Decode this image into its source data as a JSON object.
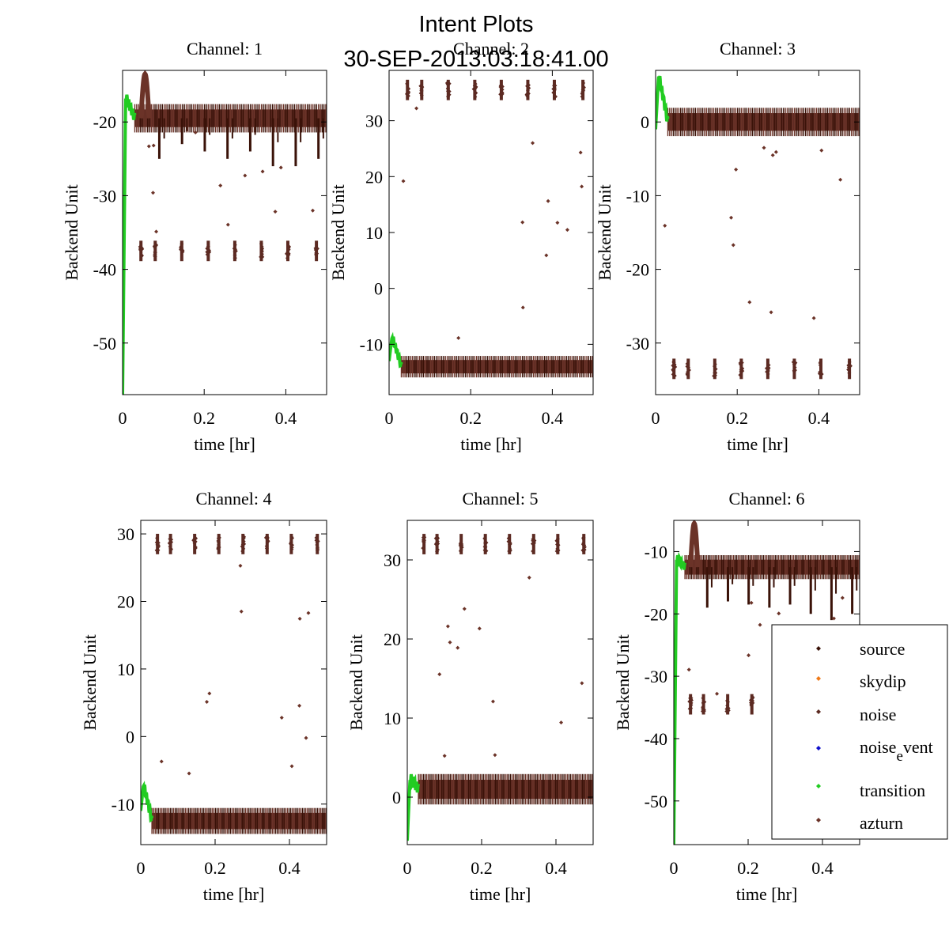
{
  "figure": {
    "title_line1": "Intent Plots",
    "title_line2": "30-SEP-2013:03:18:41.00"
  },
  "colors": {
    "source": "#3a1208",
    "skydip": "#f07a18",
    "noise": "#5c2a22",
    "noise_event": "#1010cc",
    "transition": "#22cc22",
    "azturn": "#6b3328"
  },
  "chart_data": [
    {
      "type": "scatter",
      "title": "Channel: 1",
      "xlabel": "time [hr]",
      "ylabel": "Backend Unit",
      "xlim": [
        0,
        0.5
      ],
      "ylim": [
        -57,
        -13
      ],
      "xticks": [
        0,
        0.2,
        0.4
      ],
      "xtick_labels": [
        "0",
        "0.2",
        "0.4"
      ],
      "yticks": [
        -20,
        -30,
        -40,
        -50
      ],
      "ytick_labels": [
        "-20",
        "-30",
        "-40",
        "-50"
      ],
      "baseline": -19.5,
      "band": 1.2,
      "dips": [
        -25,
        -23,
        -24,
        -25,
        -24,
        -26,
        -26,
        -25
      ],
      "cal_level": -37.5,
      "cal_times": [
        0.045,
        0.08,
        0.145,
        0.21,
        0.275,
        0.34,
        0.405,
        0.475
      ],
      "transition_from": -57,
      "transition_peak": -16.5,
      "bump_peak": -13.5
    },
    {
      "type": "scatter",
      "title": "Channel: 2",
      "xlabel": "time [hr]",
      "ylabel": "Backend Unit",
      "xlim": [
        0,
        0.5
      ],
      "ylim": [
        -19,
        39
      ],
      "xticks": [
        0,
        0.2,
        0.4
      ],
      "xtick_labels": [
        "0",
        "0.2",
        "0.4"
      ],
      "yticks": [
        30,
        20,
        10,
        0,
        -10
      ],
      "ytick_labels": [
        "30",
        "20",
        "10",
        "0",
        "-10"
      ],
      "baseline": -14,
      "band": 1.2,
      "cal_level": 35.5,
      "cal_times": [
        0.045,
        0.08,
        0.145,
        0.21,
        0.275,
        0.34,
        0.405,
        0.475
      ],
      "transition_from": -13,
      "transition_peak": -8.5
    },
    {
      "type": "scatter",
      "title": "Channel: 3",
      "xlabel": "time [hr]",
      "ylabel": "Backend Unit",
      "xlim": [
        0,
        0.5
      ],
      "ylim": [
        -37,
        7
      ],
      "xticks": [
        0,
        0.2,
        0.4
      ],
      "xtick_labels": [
        "0",
        "0.2",
        "0.4"
      ],
      "yticks": [
        0,
        -10,
        -20,
        -30
      ],
      "ytick_labels": [
        "0",
        "-10",
        "-20",
        "-30"
      ],
      "baseline": 0,
      "band": 1.2,
      "cal_level": -33.5,
      "cal_times": [
        0.045,
        0.08,
        0.145,
        0.21,
        0.275,
        0.34,
        0.405,
        0.475
      ],
      "transition_from": -1,
      "transition_peak": 6.5
    },
    {
      "type": "scatter",
      "title": "Channel: 4",
      "xlabel": "time [hr]",
      "ylabel": "Backend Unit",
      "xlim": [
        0,
        0.5
      ],
      "ylim": [
        -16,
        32
      ],
      "xticks": [
        0,
        0.2,
        0.4
      ],
      "xtick_labels": [
        "0",
        "0.2",
        "0.4"
      ],
      "yticks": [
        30,
        20,
        10,
        0,
        -10
      ],
      "ytick_labels": [
        "30",
        "20",
        "10",
        "0",
        "-10"
      ],
      "baseline": -12.5,
      "band": 1.2,
      "cal_level": 28.5,
      "cal_times": [
        0.045,
        0.08,
        0.145,
        0.21,
        0.275,
        0.34,
        0.405,
        0.475
      ],
      "transition_from": -11,
      "transition_peak": -7
    },
    {
      "type": "scatter",
      "title": "Channel: 5",
      "xlabel": "time [hr]",
      "ylabel": "Backend Unit",
      "xlim": [
        0,
        0.5
      ],
      "ylim": [
        -6,
        35
      ],
      "xticks": [
        0,
        0.2,
        0.4
      ],
      "xtick_labels": [
        "0",
        "0.2",
        "0.4"
      ],
      "yticks": [
        30,
        20,
        10,
        0
      ],
      "ytick_labels": [
        "30",
        "20",
        "10",
        "0"
      ],
      "baseline": 1,
      "band": 1.2,
      "cal_level": 32,
      "cal_times": [
        0.045,
        0.08,
        0.145,
        0.21,
        0.275,
        0.34,
        0.405,
        0.475
      ],
      "transition_from": -5.5,
      "transition_peak": 2.5
    },
    {
      "type": "scatter",
      "title": "Channel: 6",
      "xlabel": "time [hr]",
      "ylabel": "Backend Unit",
      "xlim": [
        0,
        0.5
      ],
      "ylim": [
        -57,
        -5
      ],
      "xticks": [
        0,
        0.2,
        0.4
      ],
      "xtick_labels": [
        "0",
        "0.2",
        "0.4"
      ],
      "yticks": [
        -10,
        -20,
        -30,
        -40,
        -50
      ],
      "ytick_labels": [
        "-10",
        "-20",
        "-30",
        "-40",
        "-50"
      ],
      "baseline": -12.5,
      "band": 1.2,
      "dips": [
        -19,
        -18,
        -18.5,
        -19,
        -18.5,
        -20,
        -21,
        -20
      ],
      "cal_level": -34.5,
      "cal_times": [
        0.045,
        0.08,
        0.145,
        0.21
      ],
      "transition_from": -57,
      "transition_peak": -11,
      "bump_peak": -5.5
    }
  ],
  "legend": {
    "placement": "bottom-right",
    "items": [
      {
        "key": "source",
        "label": "source"
      },
      {
        "key": "skydip",
        "label": "skydip"
      },
      {
        "key": "noise",
        "label": "noise"
      },
      {
        "key": "noise_event",
        "label": "noise",
        "sub": "e",
        "label_tail": "vent"
      },
      {
        "key": "transition",
        "label": "transition"
      },
      {
        "key": "azturn",
        "label": "azturn"
      }
    ]
  }
}
